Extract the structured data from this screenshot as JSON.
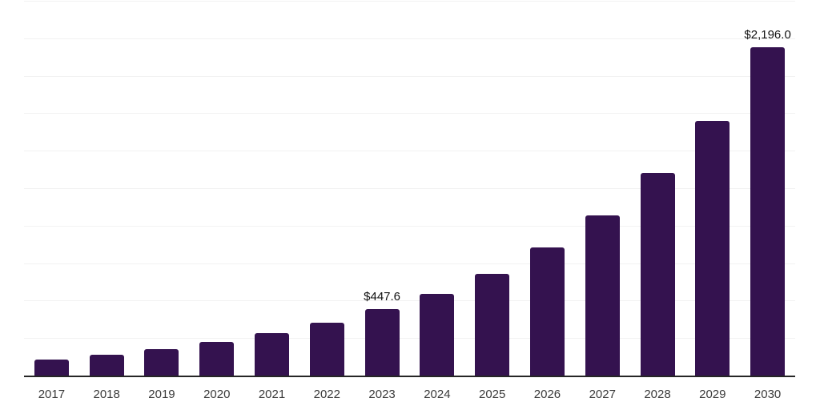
{
  "page": {
    "background_color": "#ffffff"
  },
  "chart_data": {
    "type": "bar",
    "title": "",
    "xlabel": "",
    "ylabel": "",
    "categories": [
      "2017",
      "2018",
      "2019",
      "2020",
      "2021",
      "2022",
      "2023",
      "2024",
      "2025",
      "2026",
      "2027",
      "2028",
      "2029",
      "2030"
    ],
    "values": [
      112,
      143,
      180,
      228,
      290,
      358,
      447.6,
      552,
      684,
      858,
      1075,
      1356,
      1706,
      2196
    ],
    "value_labels": [
      "",
      "",
      "",
      "",
      "",
      "",
      "$447.6",
      "",
      "",
      "",
      "",
      "",
      "",
      "$2,196.0"
    ],
    "ylim": [
      0,
      2500
    ],
    "grid": true,
    "gridline_interval": 250,
    "legend": false,
    "bar_color": "#34124f",
    "axis_line_color": "#262626",
    "gridline_color": "#f2f2f2",
    "tick_label_color": "#3b3b3b",
    "value_label_color": "#111111"
  }
}
